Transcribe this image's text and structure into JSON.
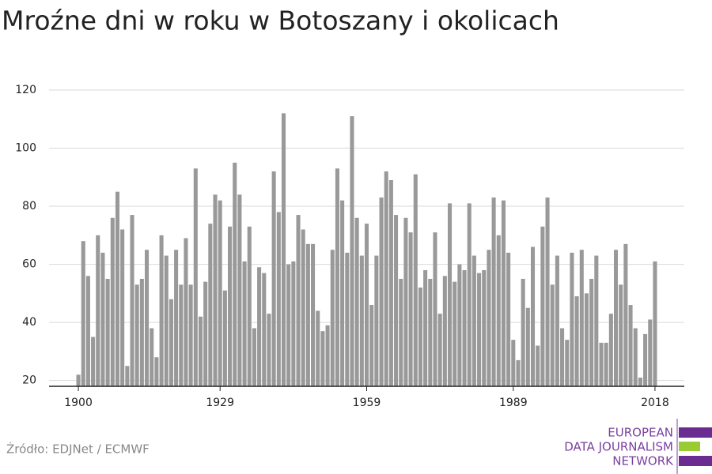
{
  "chart_data": {
    "type": "bar",
    "title": "Mroźne dni w roku w Botoszany i okolicach",
    "x": [
      1900,
      1901,
      1902,
      1903,
      1904,
      1905,
      1906,
      1907,
      1908,
      1909,
      1910,
      1911,
      1912,
      1913,
      1914,
      1915,
      1916,
      1917,
      1918,
      1919,
      1920,
      1921,
      1922,
      1923,
      1924,
      1925,
      1926,
      1927,
      1928,
      1929,
      1930,
      1931,
      1932,
      1933,
      1934,
      1935,
      1936,
      1937,
      1938,
      1939,
      1940,
      1941,
      1942,
      1943,
      1944,
      1945,
      1946,
      1947,
      1948,
      1949,
      1950,
      1951,
      1952,
      1953,
      1954,
      1955,
      1956,
      1957,
      1958,
      1959,
      1960,
      1961,
      1962,
      1963,
      1964,
      1965,
      1966,
      1967,
      1968,
      1969,
      1970,
      1971,
      1972,
      1973,
      1974,
      1975,
      1976,
      1977,
      1978,
      1979,
      1980,
      1981,
      1982,
      1983,
      1984,
      1985,
      1986,
      1987,
      1988,
      1989,
      1990,
      1991,
      1992,
      1993,
      1994,
      1995,
      1996,
      1997,
      1998,
      1999,
      2000,
      2001,
      2002,
      2003,
      2004,
      2005,
      2006,
      2007,
      2008,
      2009,
      2010,
      2011,
      2012,
      2013,
      2014,
      2015,
      2016,
      2017,
      2018
    ],
    "values": [
      22,
      68,
      56,
      35,
      70,
      64,
      55,
      76,
      85,
      72,
      25,
      77,
      53,
      55,
      65,
      38,
      28,
      70,
      63,
      48,
      65,
      53,
      69,
      53,
      93,
      42,
      54,
      74,
      84,
      82,
      51,
      73,
      95,
      84,
      61,
      73,
      38,
      59,
      57,
      43,
      92,
      78,
      112,
      60,
      61,
      77,
      72,
      67,
      67,
      44,
      37,
      39,
      65,
      93,
      82,
      64,
      111,
      76,
      63,
      74,
      46,
      63,
      83,
      92,
      89,
      77,
      55,
      76,
      71,
      91,
      52,
      58,
      55,
      71,
      43,
      56,
      81,
      54,
      60,
      58,
      81,
      63,
      57,
      58,
      65,
      83,
      70,
      82,
      64,
      34,
      27,
      55,
      45,
      66,
      32,
      73,
      83,
      53,
      63,
      38,
      34,
      64,
      49,
      65,
      50,
      55,
      63,
      33,
      33,
      43,
      65,
      53,
      67,
      46,
      38,
      21,
      36,
      41,
      61
    ],
    "color": "#999999",
    "xlim": [
      1894,
      2024
    ],
    "xticks": [
      1900,
      1929,
      1959,
      1989,
      2018
    ],
    "ylim": [
      18,
      120
    ],
    "yticks": [
      20,
      40,
      60,
      80,
      100,
      120
    ],
    "grid": true
  },
  "footer": {
    "source": "Źródło: EDJNet / ECMWF",
    "logo": [
      "EUROPEAN",
      "DATA JOURNALISM",
      "NETWORK"
    ]
  }
}
